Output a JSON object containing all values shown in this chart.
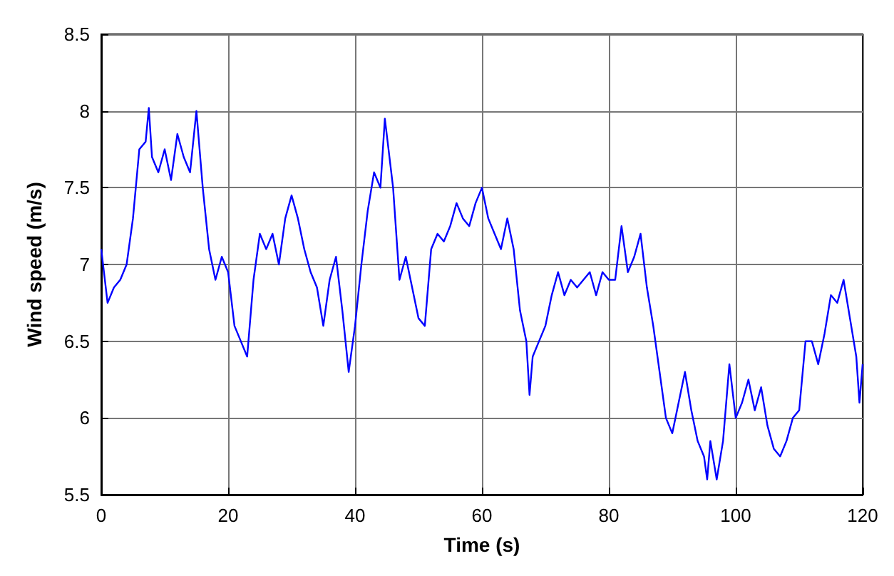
{
  "chart_data": {
    "type": "line",
    "xlabel": "Time (s)",
    "ylabel": "Wind speed (m/s)",
    "xlim": [
      0,
      120
    ],
    "ylim": [
      5.5,
      8.5
    ],
    "xticks": [
      0,
      20,
      40,
      60,
      80,
      100,
      120
    ],
    "yticks": [
      5.5,
      6,
      6.5,
      7,
      7.5,
      8,
      8.5
    ],
    "grid": true,
    "marker": "none",
    "line_style": "solid",
    "series": [
      {
        "color": "#0000ff",
        "x": [
          0,
          1,
          2,
          3,
          4,
          5,
          6,
          7,
          7.5,
          8,
          9,
          10,
          11,
          12,
          13,
          14,
          15,
          16,
          17,
          18,
          19,
          20,
          21,
          22,
          23,
          24,
          25,
          26,
          27,
          28,
          29,
          30,
          31,
          32,
          33,
          34,
          35,
          36,
          37,
          38,
          39,
          40,
          41,
          42,
          43,
          44,
          44.7,
          46,
          47,
          48,
          49,
          50,
          51,
          52,
          53,
          54,
          55,
          56,
          57,
          58,
          59,
          60,
          61,
          62,
          63,
          64,
          65,
          66,
          67,
          67.5,
          68,
          69,
          70,
          71,
          72,
          73,
          74,
          75,
          76,
          77,
          78,
          79,
          80,
          81,
          82,
          83,
          84,
          85,
          86,
          87,
          88,
          89,
          90,
          91,
          92,
          93,
          94,
          95,
          95.5,
          96,
          97,
          98,
          99,
          100,
          101,
          102,
          103,
          104,
          105,
          106,
          107,
          108,
          109,
          110,
          111,
          112,
          113,
          114,
          115,
          116,
          117,
          118,
          119,
          119.5,
          120
        ],
        "values": [
          7.1,
          6.75,
          6.85,
          6.9,
          7.0,
          7.3,
          7.75,
          7.8,
          8.02,
          7.7,
          7.6,
          7.75,
          7.55,
          7.85,
          7.7,
          7.6,
          8.0,
          7.5,
          7.1,
          6.9,
          7.05,
          6.95,
          6.6,
          6.5,
          6.4,
          6.9,
          7.2,
          7.1,
          7.2,
          7.0,
          7.3,
          7.45,
          7.3,
          7.1,
          6.95,
          6.85,
          6.6,
          6.9,
          7.05,
          6.7,
          6.3,
          6.6,
          7.0,
          7.35,
          7.6,
          7.5,
          7.95,
          7.5,
          6.9,
          7.05,
          6.85,
          6.65,
          6.6,
          7.1,
          7.2,
          7.15,
          7.25,
          7.4,
          7.3,
          7.25,
          7.4,
          7.5,
          7.3,
          7.2,
          7.1,
          7.3,
          7.1,
          6.7,
          6.5,
          6.15,
          6.4,
          6.5,
          6.6,
          6.8,
          6.95,
          6.8,
          6.9,
          6.85,
          6.9,
          6.95,
          6.8,
          6.95,
          6.9,
          6.9,
          7.25,
          6.95,
          7.05,
          7.2,
          6.85,
          6.6,
          6.3,
          6.0,
          5.9,
          6.1,
          6.3,
          6.05,
          5.85,
          5.75,
          5.6,
          5.85,
          5.6,
          5.85,
          6.35,
          6.0,
          6.1,
          6.25,
          6.05,
          6.2,
          5.95,
          5.8,
          5.75,
          5.85,
          6.0,
          6.05,
          6.5,
          6.5,
          6.35,
          6.55,
          6.8,
          6.75,
          6.9,
          6.65,
          6.4,
          6.1,
          6.35
        ]
      }
    ]
  }
}
